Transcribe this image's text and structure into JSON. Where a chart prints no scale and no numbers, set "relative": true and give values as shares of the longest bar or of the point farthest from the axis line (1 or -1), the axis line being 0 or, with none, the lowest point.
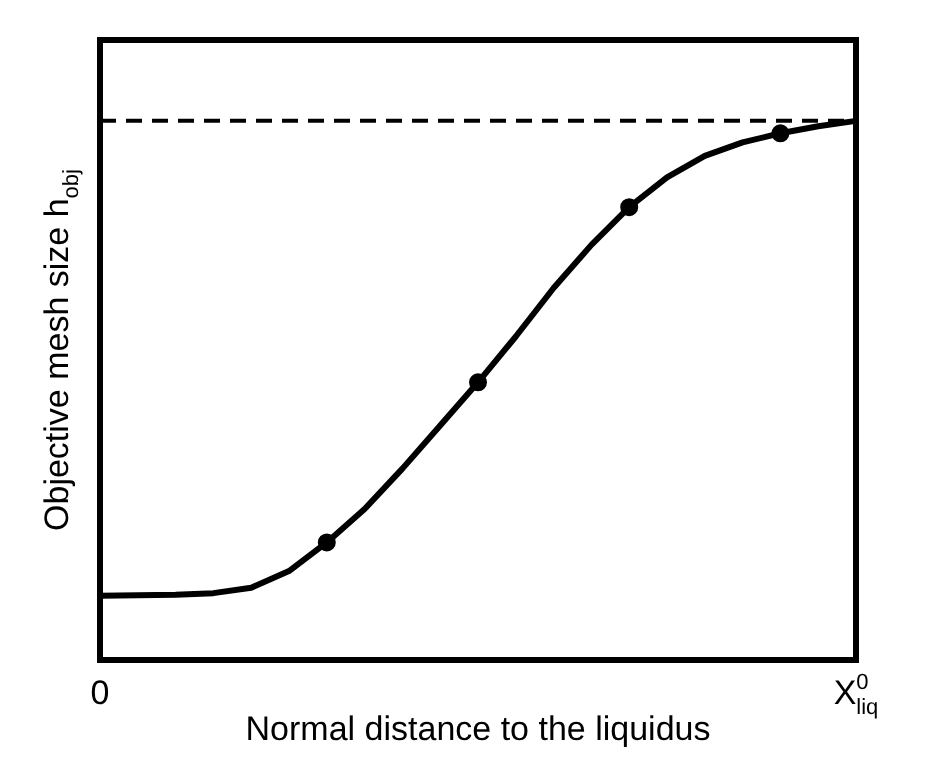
{
  "chart_data": {
    "type": "line",
    "xlabel": "Normal distance to the liquidus",
    "ylabel": "Objective mesh size h$_{obj}$",
    "relative": true,
    "categories": [
      "0",
      null,
      null,
      null,
      null,
      null,
      null,
      null,
      null,
      null,
      null,
      null,
      null,
      null,
      null,
      null,
      null,
      null,
      null,
      null,
      "X$^{0}$$_{liq}$"
    ],
    "series": [
      {
        "color": "#000000",
        "marker": "none",
        "values": [
          0.119,
          0.12,
          0.121,
          0.124,
          0.134,
          0.165,
          0.218,
          0.28,
          0.355,
          0.435,
          0.515,
          0.6,
          0.69,
          0.77,
          0.84,
          0.895,
          0.935,
          0.96,
          0.977,
          0.99,
          1
        ]
      },
      {
        "type": "scatter",
        "color": "#000000",
        "marker": "circle",
        "values": [
          null,
          null,
          null,
          null,
          null,
          null,
          0.218,
          null,
          null,
          null,
          0.515,
          null,
          null,
          null,
          0.84,
          null,
          null,
          null,
          0.977,
          null,
          null
        ]
      }
    ],
    "ref_lines": [
      {
        "axis": "y",
        "value": 1,
        "color": "#000000",
        "line_style": "dashed"
      }
    ],
    "grid": false,
    "legend": false
  }
}
